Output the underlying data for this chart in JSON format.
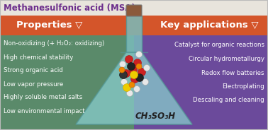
{
  "title": "Methanesulfonic acid (MSA)",
  "title_color": "#6B2D8B",
  "title_fontsize": 8.5,
  "title_bg": "#E8E4DC",
  "left_header": "Properties ▽",
  "right_header": "Key applications ▽",
  "header_color": "#FFFFFF",
  "header_fontsize": 9.5,
  "left_bg_top": "#D4552A",
  "left_bg_bottom": "#5A8A6A",
  "right_bg_top": "#D4552A",
  "right_bg_bottom": "#6B4A9B",
  "left_items": [
    "Non-oxidizing (+ H₂O₂: oxidizing)",
    "High chemical stability",
    "Strong organic acid",
    "Low vapor pressure",
    "Highly soluble metal salts",
    "Low environmental impact"
  ],
  "right_items": [
    "Catalyst for organic reactions",
    "Circular hydrometallurgy",
    "Redox flow batteries",
    "Electroplating",
    "Descaling and cleaning"
  ],
  "item_color": "#FFFFFF",
  "item_fontsize": 6.2,
  "formula": "CH₃SO₃H",
  "formula_fontsize": 8.5,
  "formula_color": "#222222",
  "flask_color": "#88CCCC",
  "flask_neck_color": "#88AAAA",
  "cork_color": "#8B5A3C",
  "figsize": [
    3.78,
    1.84
  ],
  "dpi": 100
}
